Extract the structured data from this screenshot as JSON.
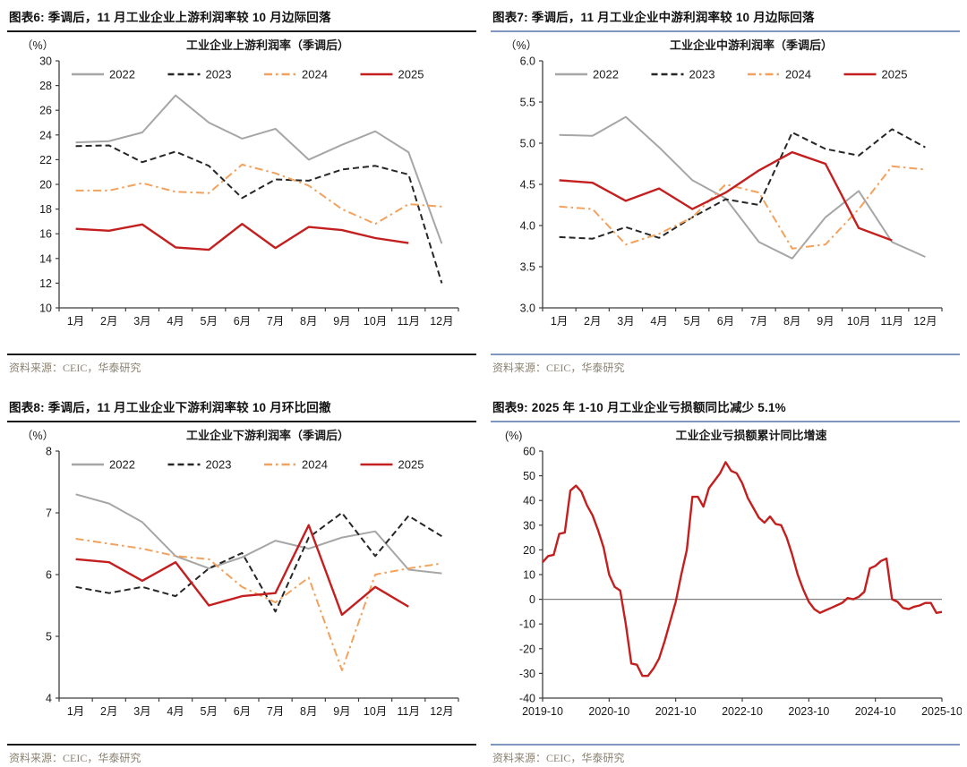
{
  "styles": {
    "background": "#ffffff",
    "header_text_color": "#111111",
    "rule_black": "#1a1a1a",
    "rule_blue": "#7f96be",
    "axis_color": "#3f3f3f",
    "zero_line_color": "#808080",
    "source_text_color": "#8a8272",
    "series_colors": {
      "y2022": "#a6a6a6",
      "y2023": "#262626",
      "y2024": "#f2a25c",
      "y2025": "#c41f1f"
    }
  },
  "panels": [
    {
      "header": "图表6:  季调后，11 月工业企业上游利润率较 10 月边际回落",
      "source": "资料来源：CEIC，华泰研究",
      "chart_index": 0
    },
    {
      "header": "图表7:  季调后，11 月工业企业中游利润率较 10 月边际回落",
      "source": "资料来源：CEIC，华泰研究",
      "chart_index": 1
    },
    {
      "header": "图表8:  季调后，11 月工业企业下游利润率较 10 月环比回撤",
      "source": "资料来源：CEIC，华泰研究",
      "chart_index": 2
    },
    {
      "header": "图表9:  2025 年 1-10 月工业企业亏损额同比减少 5.1%",
      "source": "资料来源：CEIC，华泰研究",
      "chart_index": 3
    }
  ],
  "chart_data": [
    {
      "type": "line",
      "title": "工业企业上游利润率（季调后）",
      "unit_label": "（%）",
      "legend_position": "top",
      "grid": false,
      "categories": [
        "1月",
        "2月",
        "3月",
        "4月",
        "5月",
        "6月",
        "7月",
        "8月",
        "9月",
        "10月",
        "11月",
        "12月"
      ],
      "ylim": [
        10,
        30
      ],
      "y_step": 2,
      "y_decimals": 0,
      "series": [
        {
          "name": "2022",
          "color": "#a6a6a6",
          "style": "solid",
          "values": [
            23.4,
            23.5,
            24.2,
            27.2,
            25.0,
            23.7,
            24.5,
            22.0,
            23.2,
            24.3,
            22.6,
            15.2
          ]
        },
        {
          "name": "2023",
          "color": "#262626",
          "style": "dashed",
          "values": [
            23.1,
            23.15,
            21.8,
            22.65,
            21.5,
            18.9,
            20.4,
            20.3,
            21.2,
            21.5,
            20.8,
            12.0
          ]
        },
        {
          "name": "2024",
          "color": "#f2a25c",
          "style": "dashdot",
          "values": [
            19.5,
            19.5,
            20.1,
            19.4,
            19.3,
            21.6,
            20.9,
            19.9,
            18.0,
            16.8,
            18.4,
            18.2
          ]
        },
        {
          "name": "2025",
          "color": "#c41f1f",
          "style": "solid",
          "values": [
            16.4,
            16.25,
            16.75,
            14.9,
            14.7,
            16.8,
            14.85,
            16.55,
            16.3,
            15.65,
            15.25,
            null
          ]
        }
      ]
    },
    {
      "type": "line",
      "title": "工业企业中游利润率（季调后）",
      "unit_label": "（%）",
      "legend_position": "top",
      "grid": false,
      "categories": [
        "1月",
        "2月",
        "3月",
        "4月",
        "5月",
        "6月",
        "7月",
        "8月",
        "9月",
        "10月",
        "11月",
        "12月"
      ],
      "ylim": [
        3.0,
        6.0
      ],
      "y_step": 0.5,
      "y_decimals": 1,
      "series": [
        {
          "name": "2022",
          "color": "#a6a6a6",
          "style": "solid",
          "values": [
            5.1,
            5.09,
            5.32,
            4.95,
            4.55,
            4.33,
            3.8,
            3.6,
            4.1,
            4.42,
            3.8,
            3.62
          ]
        },
        {
          "name": "2023",
          "color": "#262626",
          "style": "dashed",
          "values": [
            3.86,
            3.84,
            3.98,
            3.85,
            4.1,
            4.32,
            4.25,
            5.13,
            4.93,
            4.85,
            5.17,
            4.95
          ]
        },
        {
          "name": "2024",
          "color": "#f2a25c",
          "style": "dashdot",
          "values": [
            4.23,
            4.2,
            3.77,
            3.9,
            4.1,
            4.5,
            4.4,
            3.72,
            3.77,
            4.2,
            4.72,
            4.68
          ]
        },
        {
          "name": "2025",
          "color": "#c41f1f",
          "style": "solid",
          "values": [
            4.55,
            4.52,
            4.3,
            4.45,
            4.2,
            4.4,
            4.67,
            4.89,
            4.75,
            3.97,
            3.82,
            null
          ]
        }
      ]
    },
    {
      "type": "line",
      "title": "工业企业下游利润率（季调后）",
      "unit_label": "（%）",
      "legend_position": "top",
      "grid": false,
      "categories": [
        "1月",
        "2月",
        "3月",
        "4月",
        "5月",
        "6月",
        "7月",
        "8月",
        "9月",
        "10月",
        "11月",
        "12月"
      ],
      "ylim": [
        4,
        8
      ],
      "y_step": 1,
      "y_decimals": 0,
      "series": [
        {
          "name": "2022",
          "color": "#a6a6a6",
          "style": "solid",
          "values": [
            7.3,
            7.15,
            6.85,
            6.3,
            6.1,
            6.28,
            6.55,
            6.42,
            6.6,
            6.7,
            6.08,
            6.02
          ]
        },
        {
          "name": "2023",
          "color": "#262626",
          "style": "dashed",
          "values": [
            5.8,
            5.7,
            5.8,
            5.65,
            6.1,
            6.35,
            5.4,
            6.6,
            7.0,
            6.3,
            6.95,
            6.62
          ]
        },
        {
          "name": "2024",
          "color": "#f2a25c",
          "style": "dashdot",
          "values": [
            6.58,
            6.5,
            6.42,
            6.3,
            6.25,
            5.8,
            5.55,
            5.95,
            4.45,
            6.0,
            6.1,
            6.18
          ]
        },
        {
          "name": "2025",
          "color": "#c41f1f",
          "style": "solid",
          "values": [
            6.25,
            6.2,
            5.9,
            6.2,
            5.5,
            5.65,
            5.7,
            6.8,
            5.35,
            5.8,
            5.48,
            null
          ]
        }
      ]
    },
    {
      "type": "line",
      "title": "工业企业亏损额累计同比增速",
      "unit_label": "(%)",
      "legend_position": "none",
      "grid": false,
      "x_tick_every": 12,
      "x_tick_labels": [
        "2019-10",
        "2020-10",
        "2021-10",
        "2022-10",
        "2023-10",
        "2024-10",
        "2025-10"
      ],
      "ylim": [
        -40,
        60
      ],
      "y_step": 10,
      "y_decimals": 0,
      "zero_line": true,
      "series": [
        {
          "name": "亏损额累计同比增速",
          "color": "#c41f1f",
          "style": "solid",
          "values": [
            15,
            17.5,
            18,
            26.5,
            27,
            44,
            46,
            43.5,
            38,
            34,
            28,
            21,
            10,
            5,
            3.5,
            -10,
            -26,
            -26.5,
            -31,
            -31,
            -28,
            -24,
            -17,
            -9,
            -1,
            10,
            20,
            41.5,
            41.5,
            37.5,
            45,
            48,
            51,
            55.5,
            52,
            51,
            47,
            41,
            37,
            33,
            31,
            33.5,
            30.5,
            30,
            25,
            18,
            10,
            4,
            -1,
            -4,
            -5.5,
            -4.5,
            -3.5,
            -2.5,
            -1.5,
            0.5,
            0,
            1,
            3,
            12.5,
            13.5,
            15.5,
            16.5,
            0,
            -1,
            -3.5,
            -4,
            -3,
            -2.5,
            -1.5,
            -1.5,
            -5.5,
            -5.1
          ]
        }
      ]
    }
  ]
}
